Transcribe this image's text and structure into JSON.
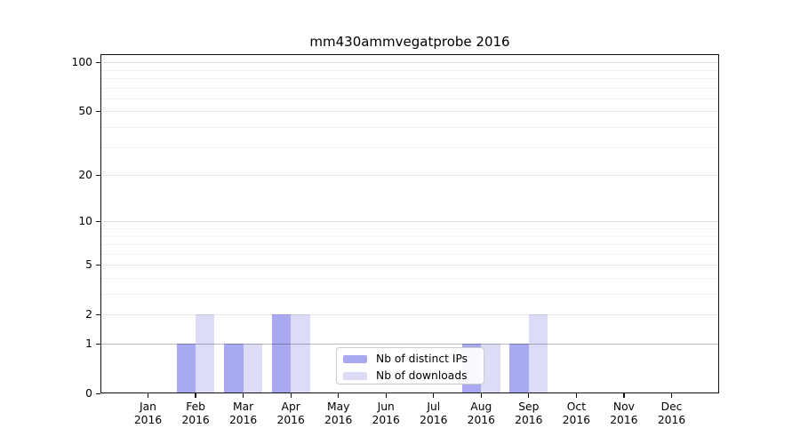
{
  "chart_data": {
    "type": "bar",
    "title": "mm430ammvegatprobe 2016",
    "categories": [
      "Jan 2016",
      "Feb 2016",
      "Mar 2016",
      "Apr 2016",
      "May 2016",
      "Jun 2016",
      "Jul 2016",
      "Aug 2016",
      "Sep 2016",
      "Oct 2016",
      "Nov 2016",
      "Dec 2016"
    ],
    "series": [
      {
        "name": "Nb of distinct IPs",
        "color": "#a9a9f1",
        "values": [
          0,
          1,
          1,
          2,
          0,
          0,
          0,
          1,
          1,
          0,
          0,
          0
        ]
      },
      {
        "name": "Nb of downloads",
        "color": "#dcdcf7",
        "values": [
          0,
          2,
          1,
          2,
          0,
          0,
          0,
          1,
          2,
          0,
          0,
          0
        ]
      }
    ],
    "xlabel": "",
    "ylabel": "",
    "yscale": "log1p",
    "ylim": [
      0,
      112
    ],
    "yticks": [
      0,
      1,
      2,
      5,
      10,
      20,
      50,
      100
    ],
    "yticks_minor": [
      3,
      4,
      6,
      7,
      8,
      9,
      30,
      40,
      60,
      70,
      80,
      90
    ],
    "grid": true,
    "legend_position": "inside lower center",
    "colors": {
      "major_gridline": "rgba(0,0,0,0.27)",
      "mid_gridline": "rgba(0,0,0,0.12)",
      "labeled_gridline": "rgba(0,0,0,0.09)",
      "minor_gridline": "rgba(0,0,0,0.05)",
      "spine": "#111111",
      "background": "#ffffff"
    }
  }
}
